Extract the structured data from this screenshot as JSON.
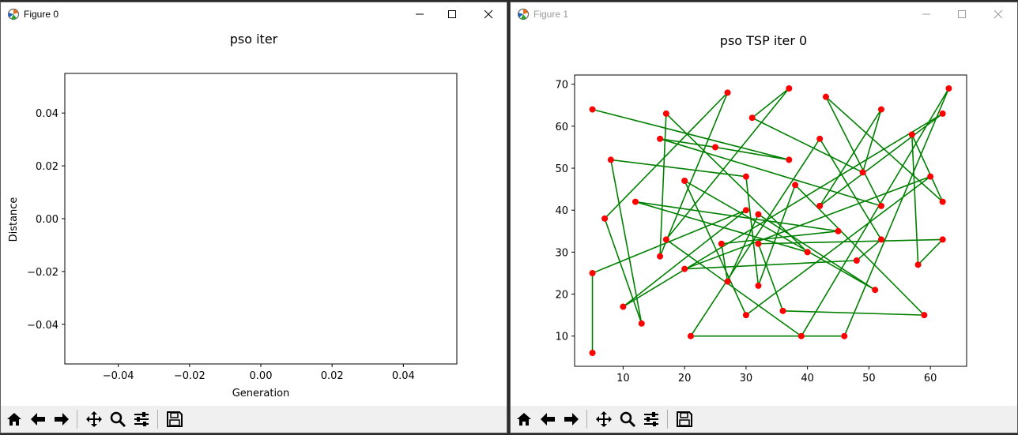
{
  "figure0": {
    "window_title": "Figure 0",
    "icons": [
      "figure-app-icon",
      "minimize-icon",
      "maximize-icon",
      "close-icon"
    ],
    "chart_data": {
      "type": "line",
      "title": "pso iter",
      "xlabel": "Generation",
      "ylabel": "Distance",
      "xlim": [
        -0.055,
        0.055
      ],
      "ylim": [
        -0.055,
        0.055
      ],
      "xticks": [
        "−0.04",
        "−0.02",
        "0.00",
        "0.02",
        "0.04"
      ],
      "yticks": [
        "0.04",
        "0.02",
        "0.00",
        "−0.02",
        "−0.04"
      ],
      "xtick_values": [
        -0.04,
        -0.02,
        0.0,
        0.02,
        0.04
      ],
      "ytick_values": [
        0.04,
        0.02,
        0.0,
        -0.02,
        -0.04
      ],
      "series": [],
      "grid": false
    }
  },
  "figure1": {
    "window_title": "Figure 1",
    "icons": [
      "figure-app-icon",
      "minimize-icon",
      "maximize-icon",
      "close-icon"
    ],
    "chart_data": {
      "type": "line",
      "title": "pso TSP iter 0",
      "xlim": [
        2.1,
        65.9
      ],
      "ylim": [
        2.8,
        72.2
      ],
      "xticks": [
        "10",
        "20",
        "30",
        "40",
        "50",
        "60"
      ],
      "yticks": [
        "70",
        "60",
        "50",
        "40",
        "30",
        "20",
        "10"
      ],
      "xtick_values": [
        10,
        20,
        30,
        40,
        50,
        60
      ],
      "ytick_values": [
        70,
        60,
        50,
        40,
        30,
        20,
        10
      ],
      "route_color": "#008000",
      "city_color": "#ff0000",
      "grid": false,
      "route": [
        [
          5,
          64
        ],
        [
          37,
          52
        ],
        [
          25,
          55
        ],
        [
          16,
          57
        ],
        [
          52,
          41
        ],
        [
          43,
          67
        ],
        [
          62,
          42
        ],
        [
          57,
          58
        ],
        [
          58,
          27
        ],
        [
          62,
          33
        ],
        [
          32,
          32
        ],
        [
          36,
          16
        ],
        [
          59,
          15
        ],
        [
          38,
          46
        ],
        [
          32,
          22
        ],
        [
          30,
          48
        ],
        [
          8,
          52
        ],
        [
          13,
          13
        ],
        [
          7,
          38
        ],
        [
          27,
          68
        ],
        [
          16,
          29
        ],
        [
          17,
          63
        ],
        [
          40,
          30
        ],
        [
          12,
          42
        ],
        [
          45,
          35
        ],
        [
          26,
          32
        ],
        [
          27,
          23
        ],
        [
          32,
          39
        ],
        [
          51,
          21
        ],
        [
          20,
          47
        ],
        [
          30,
          15
        ],
        [
          60,
          48
        ],
        [
          20,
          26
        ],
        [
          48,
          28
        ],
        [
          52,
          33
        ],
        [
          42,
          57
        ],
        [
          21,
          10
        ],
        [
          46,
          10
        ],
        [
          63,
          69
        ],
        [
          39,
          10
        ],
        [
          17,
          33
        ],
        [
          37,
          69
        ],
        [
          31,
          62
        ],
        [
          49,
          49
        ],
        [
          52,
          64
        ],
        [
          42,
          41
        ],
        [
          62,
          63
        ],
        [
          10,
          17
        ],
        [
          30,
          40
        ],
        [
          5,
          25
        ],
        [
          5,
          6
        ]
      ]
    }
  },
  "toolbar": {
    "buttons": [
      "home-icon",
      "back-icon",
      "forward-icon",
      "pan-icon",
      "zoom-icon",
      "configure-subplots-icon",
      "save-icon"
    ]
  }
}
